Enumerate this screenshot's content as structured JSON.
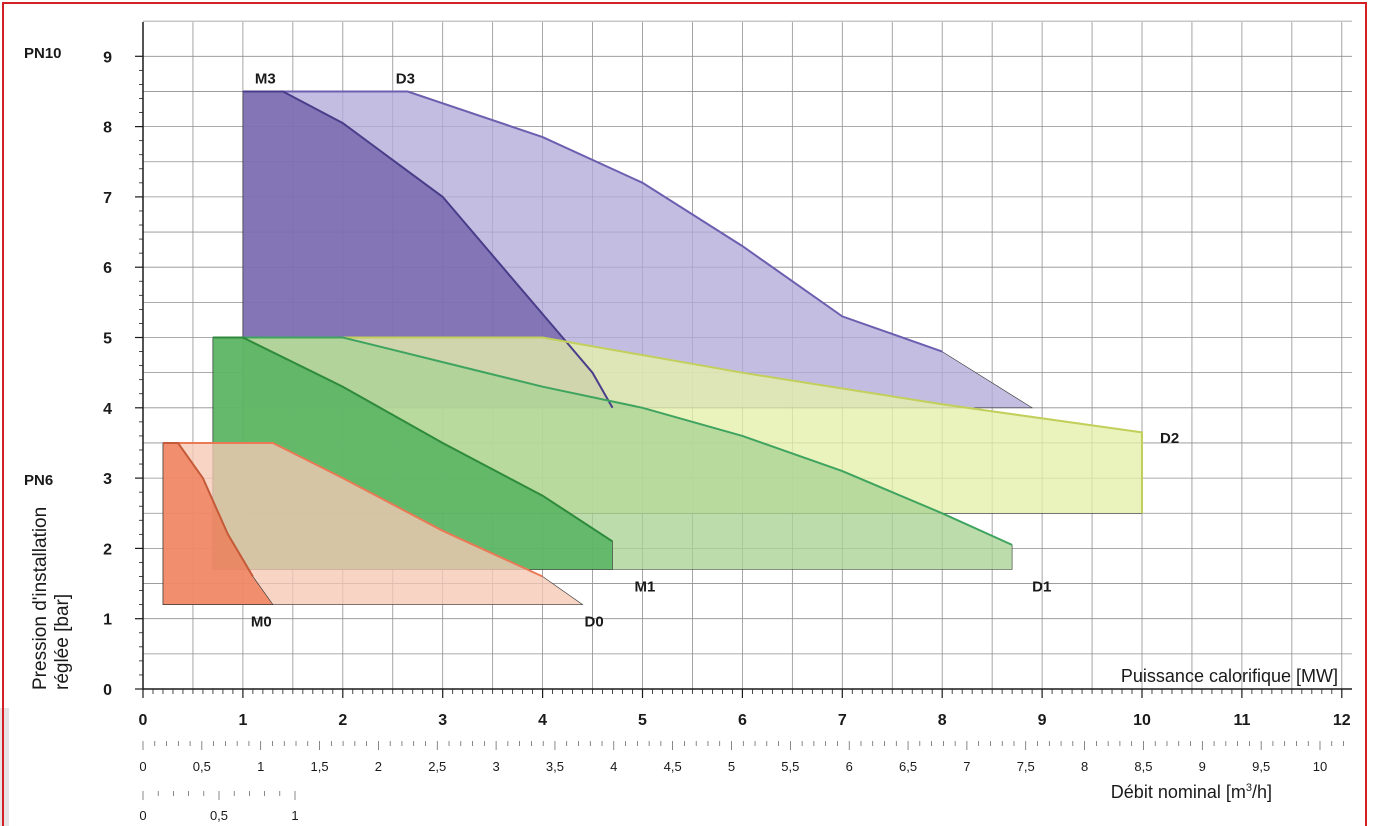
{
  "chart_data": {
    "type": "area",
    "title": "",
    "xlabel": "Puissance calorifique [MW]",
    "ylabel_line1": "Pression d'installation",
    "ylabel_line2": "réglée [bar]",
    "pn_labels": [
      {
        "text": "PN10",
        "y": 9
      },
      {
        "text": "PN6",
        "y": 3
      }
    ],
    "xlim": [
      0,
      12
    ],
    "ylim": [
      0,
      9
    ],
    "x_ticks": [
      "0",
      "1",
      "2",
      "3",
      "4",
      "5",
      "6",
      "7",
      "8",
      "9",
      "10",
      "11",
      "12"
    ],
    "y_ticks": [
      "0",
      "1",
      "2",
      "3",
      "4",
      "5",
      "6",
      "7",
      "8",
      "9"
    ],
    "flow_axis": {
      "label": "Débit nominal [m³/h]",
      "label_main": "Débit nominal [m",
      "label_sup": "3",
      "label_end": "/h]",
      "ticks": [
        "0",
        "0,5",
        "1",
        "1,5",
        "2",
        "2,5",
        "3",
        "3,5",
        "4",
        "4,5",
        "5",
        "5,5",
        "6",
        "6,5",
        "7",
        "7,5",
        "8",
        "8,5",
        "9",
        "9,5",
        "10"
      ],
      "tick_values": [
        0,
        0.5,
        1,
        1.5,
        2,
        2.5,
        3,
        3.5,
        4,
        4.5,
        5,
        5.5,
        6,
        6.5,
        7,
        7.5,
        8,
        8.5,
        9,
        9.5,
        10
      ]
    },
    "flow_axis_2": {
      "ticks": [
        "0",
        "0,5",
        "1"
      ],
      "tick_values": [
        0,
        0.5,
        1
      ]
    },
    "series": [
      {
        "name": "D3",
        "color": "#b2acd8",
        "stroke": "#6c5fb0",
        "points": [
          [
            1,
            4
          ],
          [
            1,
            8.5
          ],
          [
            2.65,
            8.5
          ],
          [
            4,
            7.85
          ],
          [
            5,
            7.2
          ],
          [
            6,
            6.3
          ],
          [
            7,
            5.3
          ],
          [
            8,
            4.8
          ],
          [
            8.9,
            4
          ],
          [
            1,
            4
          ]
        ],
        "label_at": [
          2.65,
          8.5
        ]
      },
      {
        "name": "M3",
        "color": "#7260ab",
        "stroke": "#4a3d8a",
        "points": [
          [
            1,
            4.3
          ],
          [
            1,
            8.5
          ],
          [
            1.4,
            8.5
          ],
          [
            2,
            8.05
          ],
          [
            3,
            7
          ],
          [
            3.6,
            6
          ],
          [
            4.2,
            5
          ],
          [
            4.5,
            4.5
          ],
          [
            4.7,
            4
          ],
          [
            1,
            4
          ]
        ],
        "label_at": [
          1.4,
          8.5
        ]
      },
      {
        "name": "D2",
        "color": "#e6efaa",
        "stroke": "#c2cf5a",
        "points": [
          [
            1,
            4
          ],
          [
            1,
            5
          ],
          [
            4,
            5
          ],
          [
            6,
            4.5
          ],
          [
            8,
            4.05
          ],
          [
            10,
            3.65
          ],
          [
            10,
            2.5
          ],
          [
            1,
            2.5
          ]
        ],
        "label_at": [
          10,
          3.5
        ]
      },
      {
        "name": "D1",
        "color": "#a9d294",
        "stroke": "#3fa45f",
        "points": [
          [
            0.7,
            1.7
          ],
          [
            0.7,
            5
          ],
          [
            2,
            5
          ],
          [
            3,
            4.65
          ],
          [
            4,
            4.3
          ],
          [
            5,
            4
          ],
          [
            6,
            3.6
          ],
          [
            7,
            3.1
          ],
          [
            8,
            2.5
          ],
          [
            8.7,
            2.05
          ],
          [
            8.7,
            1.7
          ]
        ],
        "label_at": [
          8.7,
          1.7
        ]
      },
      {
        "name": "M1",
        "color": "#4caf5a",
        "stroke": "#2e8a3c",
        "points": [
          [
            0.7,
            1.7
          ],
          [
            0.7,
            5
          ],
          [
            1,
            5
          ],
          [
            2,
            4.3
          ],
          [
            3,
            3.5
          ],
          [
            4,
            2.75
          ],
          [
            4.7,
            2.1
          ],
          [
            4.7,
            1.7
          ]
        ],
        "label_at": [
          4.7,
          1.7
        ]
      },
      {
        "name": "D0",
        "color": "#f6c8b5",
        "stroke": "#ea7a56",
        "points": [
          [
            0.2,
            1.2
          ],
          [
            0.2,
            3.5
          ],
          [
            1.3,
            3.5
          ],
          [
            2,
            3
          ],
          [
            3,
            2.25
          ],
          [
            4,
            1.6
          ],
          [
            4.4,
            1.2
          ]
        ],
        "label_at": [
          4.4,
          1.2
        ]
      },
      {
        "name": "M0",
        "color": "#ee7a56",
        "stroke": "#c55a38",
        "points": [
          [
            0.2,
            1.2
          ],
          [
            0.2,
            3.5
          ],
          [
            0.35,
            3.5
          ],
          [
            0.6,
            3
          ],
          [
            0.85,
            2.2
          ],
          [
            1.1,
            1.6
          ],
          [
            1.3,
            1.2
          ]
        ],
        "label_at": [
          1.1,
          1.2
        ]
      }
    ]
  },
  "colors": {
    "frame": "#d31f26",
    "grid": "#8f8f8f",
    "axis": "#1a1a1a",
    "left_bar": "#e5e5e5"
  }
}
